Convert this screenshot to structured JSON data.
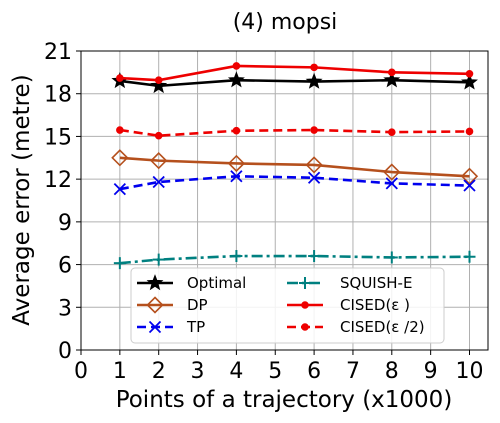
{
  "chart_data": {
    "type": "line",
    "title": "(4) mopsi",
    "xlabel": "Points of a trajectory (x1000)",
    "ylabel": "Average error (metre)",
    "ylim": [
      0,
      21
    ],
    "yticks": [
      "0",
      "3",
      "6",
      "9",
      "12",
      "15",
      "18",
      "21"
    ],
    "xticks": [
      "0",
      "1",
      "2",
      "3",
      "4",
      "5",
      "6",
      "7",
      "8",
      "9",
      "10"
    ],
    "x": [
      "1",
      "2",
      "4",
      "6",
      "8",
      "10"
    ],
    "grid": true,
    "legend_position": "lower center",
    "series": [
      {
        "name": "Optimal",
        "color": "#000000",
        "marker": "star",
        "dash": "solid",
        "values": [
          18.9,
          18.55,
          18.95,
          18.85,
          18.95,
          18.8
        ]
      },
      {
        "name": "DP",
        "color": "#b5501d",
        "marker": "diamond",
        "dash": "solid",
        "values": [
          13.5,
          13.3,
          13.1,
          13.0,
          12.5,
          12.2
        ]
      },
      {
        "name": "TP",
        "color": "#0000ee",
        "marker": "x",
        "dash": "dashed",
        "values": [
          11.3,
          11.8,
          12.2,
          12.1,
          11.7,
          11.55
        ]
      },
      {
        "name": "SQUISH-E",
        "color": "#008080",
        "marker": "plus",
        "dash": "dashdot",
        "values": [
          6.1,
          6.35,
          6.6,
          6.6,
          6.5,
          6.55
        ]
      },
      {
        "name": "CISED(ε )",
        "color": "#ee0000",
        "marker": "dot",
        "dash": "solid",
        "values": [
          19.1,
          18.95,
          19.95,
          19.85,
          19.5,
          19.4
        ]
      },
      {
        "name": "CISED(ε /2)",
        "color": "#ee0000",
        "marker": "dot",
        "dash": "dashed",
        "values": [
          15.45,
          15.05,
          15.4,
          15.45,
          15.3,
          15.35
        ]
      }
    ]
  }
}
